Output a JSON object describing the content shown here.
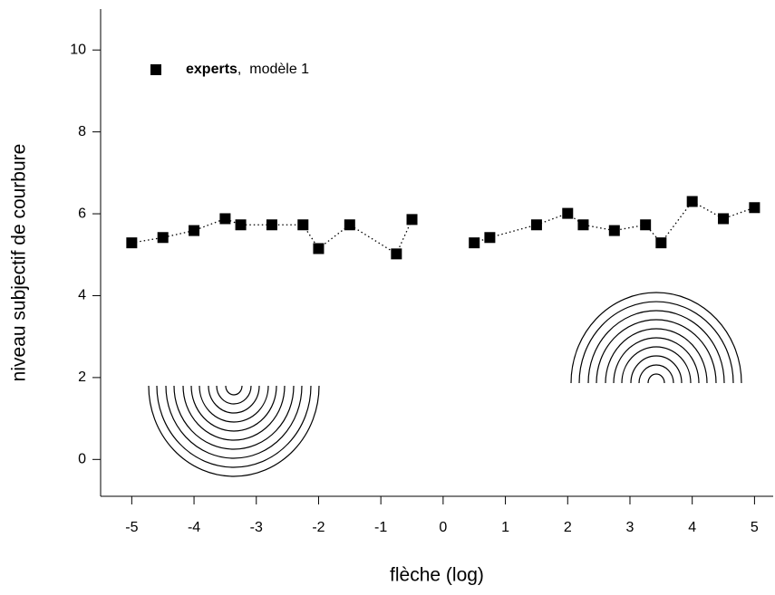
{
  "chart_data": {
    "type": "line",
    "x_label": "flèche (log)",
    "y_label": "niveau subjectif de courbure",
    "xlim": [
      -5.5,
      5.3
    ],
    "ylim": [
      -0.9,
      11
    ],
    "xticks": [
      -5,
      -4,
      -3,
      -2,
      -1,
      0,
      1,
      2,
      3,
      4,
      5
    ],
    "yticks": [
      0,
      2,
      4,
      6,
      8,
      10
    ],
    "legend": "top-left",
    "legend_suffix": ",  modèle 1",
    "series": [
      {
        "name": "experts",
        "color": "#000000",
        "x": [
          -5,
          -4.5,
          -4,
          -3.5,
          -3.25,
          -2.75,
          -2.25,
          -2,
          -1.5,
          -0.75,
          -0.5
        ],
        "values": [
          5.29,
          5.42,
          5.59,
          5.88,
          5.73,
          5.73,
          5.73,
          5.15,
          5.73,
          5.02,
          5.86
        ]
      },
      {
        "color": "#000000",
        "x": [
          0.5,
          0.75,
          1.5,
          2,
          2.25,
          2.75,
          3.25,
          3.5,
          4,
          4.5,
          5
        ],
        "values": [
          5.29,
          5.42,
          5.73,
          6.01,
          5.73,
          5.59,
          5.73,
          5.29,
          6.3,
          5.88,
          6.15
        ]
      }
    ]
  }
}
